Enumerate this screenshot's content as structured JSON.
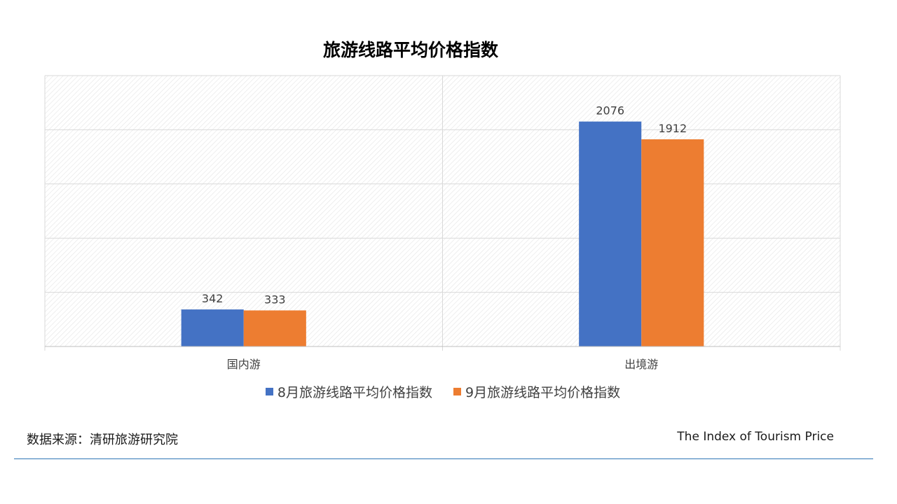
{
  "chart_data": {
    "type": "bar",
    "title": "旅游线路平均价格指数",
    "categories": [
      "国内游",
      "出境游"
    ],
    "series": [
      {
        "name": "8月旅游线路平均价格指数",
        "values": [
          342,
          2076
        ],
        "color": "#4472c4"
      },
      {
        "name": "9月旅游线路平均价格指数",
        "values": [
          333,
          1912
        ],
        "color": "#ed7d31"
      }
    ],
    "ylim": [
      0,
      2500
    ],
    "grid": true,
    "legend": "bottom",
    "data_labels": true
  },
  "footer": {
    "source": "数据来源：清研旅游研究院",
    "english_title": "The Index of Tourism Price"
  },
  "colors": {
    "accent_rule": "#2e75b6",
    "gridline": "#d9d9d9"
  }
}
